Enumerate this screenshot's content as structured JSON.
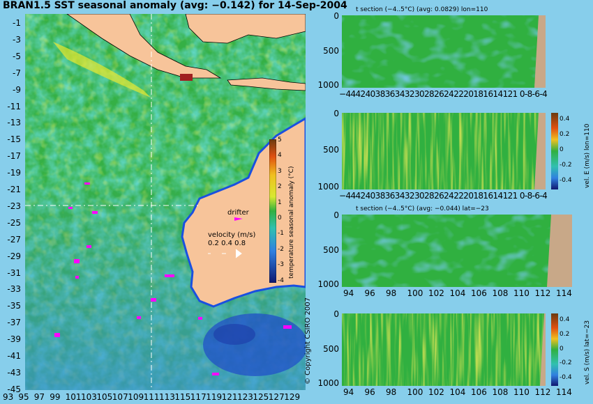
{
  "main_title": "BRAN1.5 SST seasonal anomaly (avg: −0.142) for 14-Sep-2004",
  "map": {
    "lat_ticks": [
      "-1",
      "-3",
      "-5",
      "-7",
      "-9",
      "-11",
      "-13",
      "-15",
      "-17",
      "-19",
      "-21",
      "-23",
      "-25",
      "-27",
      "-29",
      "-31",
      "-33",
      "-35",
      "-37",
      "-39",
      "-41",
      "-43",
      "-45"
    ],
    "lon_ticks": [
      "93",
      "95",
      "97",
      "99",
      "101",
      "103",
      "105",
      "107",
      "109",
      "111",
      "113",
      "115",
      "117",
      "119",
      "121",
      "123",
      "125",
      "127",
      "129"
    ],
    "drifter_label": "drifter",
    "velocity_label": "velocity (m/s)",
    "velocity_scale": "0.2 0.4 0.8",
    "colorbar": {
      "label": "temperature seasonal anomaly (°C)",
      "ticks": [
        "5",
        "4",
        "3",
        "2",
        "1",
        "0",
        "-1",
        "-2",
        "-3",
        "-4"
      ],
      "range": [
        -4,
        5
      ]
    },
    "copyright": "© Copyright CSIRO 2007",
    "colors": {
      "land": "#f7c49a",
      "ocean_base": "#2fb24a",
      "drifter": "#ff00ff"
    }
  },
  "panels": [
    {
      "title": "t section (−4..5°C) (avg: 0.0829) lon=110",
      "y_ticks": [
        "0",
        "500",
        "1000"
      ],
      "x_ticks": "−44424038363432302826242220181614121 0-8-6-4",
      "side_label": ""
    },
    {
      "title": "",
      "y_ticks": [
        "0",
        "500",
        "1000"
      ],
      "x_ticks": "−44424038363432302826242220181614121 0-8-6-4",
      "side_label": "vel. E (m/s) lon=110",
      "colorbar_ticks": [
        "0.4",
        "0.2",
        "0",
        "-0.2",
        "-0.4"
      ]
    },
    {
      "title": "t section (−4..5°C) (avg: −0.044) lat=−23",
      "y_ticks": [
        "0",
        "500",
        "1000"
      ],
      "x_ticks": [
        "94",
        "96",
        "98",
        "100",
        "102",
        "104",
        "106",
        "108",
        "110",
        "112",
        "114"
      ],
      "side_label": ""
    },
    {
      "title": "",
      "y_ticks": [
        "0",
        "500",
        "1000"
      ],
      "x_ticks": [
        "94",
        "96",
        "98",
        "100",
        "102",
        "104",
        "106",
        "108",
        "110",
        "112",
        "114"
      ],
      "side_label": "vel. S (m/s) lat=−23",
      "colorbar_ticks": [
        "0.4",
        "0.2",
        "0",
        "-0.2",
        "-0.4"
      ]
    }
  ]
}
